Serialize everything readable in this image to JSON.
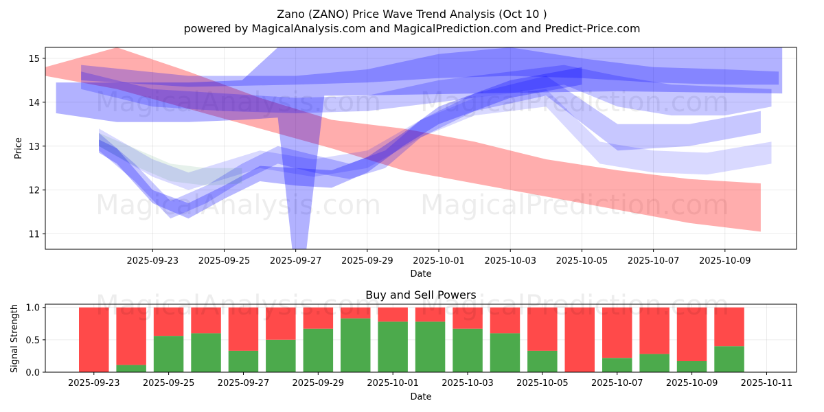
{
  "chart_data": [
    {
      "type": "area",
      "title": "Zano (ZANO) Price Wave Trend Analysis (Oct 10 )",
      "subtitle": "powered by MagicalAnalysis.com and MagicalPrediction.com and Predict-Price.com",
      "xlabel": "Date",
      "ylabel": "Price",
      "xlim": [
        "2025-09-20",
        "2025-10-11"
      ],
      "ylim": [
        10.65,
        15.25
      ],
      "x_ticks": [
        "2025-09-23",
        "2025-09-25",
        "2025-09-27",
        "2025-09-29",
        "2025-10-01",
        "2025-10-03",
        "2025-10-05",
        "2025-10-07",
        "2025-10-09"
      ],
      "y_ticks": [
        11,
        12,
        13,
        14,
        15
      ],
      "grid": true,
      "watermarks": [
        "MagicalAnalysis.com",
        "MagicalPrediction.com",
        "MagicalAnalysis.com",
        "MagicalPrediction.com"
      ],
      "series": [
        {
          "name": "red-band",
          "color": "#ff0000",
          "opacity": 0.32,
          "x": [
            "2025-09-20",
            "2025-09-22",
            "2025-09-24",
            "2025-09-26",
            "2025-09-28",
            "2025-09-30",
            "2025-10-02",
            "2025-10-04",
            "2025-10-06",
            "2025-10-08",
            "2025-10-10"
          ],
          "upper": [
            14.8,
            15.25,
            14.7,
            14.1,
            13.6,
            13.4,
            13.1,
            12.7,
            12.45,
            12.25,
            12.15
          ],
          "lower": [
            14.6,
            14.3,
            13.85,
            13.4,
            12.95,
            12.45,
            12.15,
            11.85,
            11.55,
            11.25,
            11.05
          ]
        },
        {
          "name": "blue-band-1",
          "color": "#0000ff",
          "opacity": 0.3,
          "x": [
            "2025-09-20.3",
            "2025-09-22",
            "2025-09-24",
            "2025-09-25.5",
            "2025-09-26.5",
            "2025-09-26.9",
            "2025-09-27.3",
            "2025-09-27.8",
            "2025-09-28.5",
            "2025-10-02",
            "2025-10-06",
            "2025-10-10.6"
          ],
          "upper": [
            14.45,
            14.45,
            14.45,
            14.5,
            15.25,
            15.25,
            15.25,
            15.25,
            15.25,
            15.25,
            15.25,
            15.25
          ],
          "lower": [
            13.75,
            13.55,
            13.55,
            13.6,
            13.65,
            10.65,
            10.65,
            14.15,
            14.15,
            14.2,
            14.25,
            14.2
          ]
        },
        {
          "name": "blue-band-2",
          "color": "#0000ff",
          "opacity": 0.25,
          "x": [
            "2025-09-21",
            "2025-09-24",
            "2025-09-27",
            "2025-09-29",
            "2025-10-01",
            "2025-10-03",
            "2025-10-05",
            "2025-10-07",
            "2025-10-09",
            "2025-10-10.5"
          ],
          "upper": [
            14.85,
            14.6,
            14.6,
            14.75,
            15.1,
            15.25,
            15.0,
            14.8,
            14.75,
            14.7
          ],
          "lower": [
            14.5,
            14.35,
            14.4,
            14.45,
            14.55,
            14.6,
            14.55,
            14.45,
            14.4,
            14.4
          ]
        },
        {
          "name": "blue-band-3",
          "color": "#0000ff",
          "opacity": 0.22,
          "x": [
            "2025-09-21",
            "2025-09-23",
            "2025-09-25",
            "2025-09-27",
            "2025-09-29",
            "2025-10-01",
            "2025-10-03",
            "2025-10-04.5",
            "2025-10-06",
            "2025-10-07.5",
            "2025-10-09",
            "2025-10-10.3"
          ],
          "upper": [
            14.7,
            14.3,
            14.2,
            14.1,
            14.15,
            14.5,
            14.7,
            14.85,
            14.6,
            14.4,
            14.35,
            14.3
          ],
          "lower": [
            14.3,
            13.9,
            13.8,
            13.75,
            13.8,
            14.0,
            14.2,
            14.4,
            13.9,
            13.7,
            13.7,
            13.9
          ]
        },
        {
          "name": "blue-wave-1",
          "color": "#0000ff",
          "opacity": 0.28,
          "x": [
            "2025-09-21.5",
            "2025-09-22",
            "2025-09-23",
            "2025-09-24",
            "2025-09-25",
            "2025-09-26",
            "2025-09-27",
            "2025-09-28",
            "2025-09-29",
            "2025-09-30",
            "2025-10-01",
            "2025-10-03",
            "2025-10-05"
          ],
          "upper": [
            13.15,
            12.95,
            12.0,
            11.7,
            12.1,
            12.55,
            12.5,
            12.45,
            12.75,
            13.3,
            13.9,
            14.5,
            14.8
          ],
          "lower": [
            12.85,
            12.6,
            11.7,
            11.35,
            11.8,
            12.2,
            12.1,
            12.05,
            12.4,
            13.0,
            13.5,
            14.1,
            14.4
          ]
        },
        {
          "name": "blue-wave-2",
          "color": "#0000ff",
          "opacity": 0.22,
          "x": [
            "2025-09-21.5",
            "2025-09-22.5",
            "2025-09-23.5",
            "2025-09-24.5",
            "2025-09-25.5",
            "2025-09-26.5",
            "2025-09-27.5",
            "2025-09-28.5",
            "2025-09-29.5",
            "2025-10-00.5",
            "2025-10-02",
            "2025-10-04",
            "2025-10-06",
            "2025-10-08",
            "2025-10-10"
          ],
          "upper": [
            13.3,
            12.6,
            11.75,
            12.1,
            12.6,
            13.0,
            12.8,
            12.6,
            12.9,
            13.6,
            14.2,
            14.6,
            13.5,
            13.5,
            13.8
          ],
          "lower": [
            12.9,
            12.2,
            11.35,
            11.7,
            12.2,
            12.6,
            12.4,
            12.25,
            12.5,
            13.2,
            13.8,
            14.15,
            12.9,
            13.0,
            13.3
          ]
        },
        {
          "name": "blue-wave-3",
          "color": "#0000ff",
          "opacity": 0.15,
          "x": [
            "2025-09-21.5",
            "2025-09-23",
            "2025-09-24",
            "2025-09-26",
            "2025-09-27.5",
            "2025-09-29",
            "2025-10-00.5",
            "2025-10-02",
            "2025-10-04",
            "2025-10-05.5",
            "2025-10-07",
            "2025-10-08.5",
            "2025-10-10.3"
          ],
          "upper": [
            13.4,
            12.7,
            12.4,
            12.9,
            12.7,
            12.9,
            13.6,
            14.1,
            14.3,
            13.1,
            12.9,
            12.85,
            13.1
          ],
          "lower": [
            13.0,
            12.3,
            12.0,
            12.5,
            12.3,
            12.5,
            13.2,
            13.7,
            13.9,
            12.6,
            12.4,
            12.35,
            12.6
          ]
        },
        {
          "name": "green-wave",
          "color": "#2e8b57",
          "opacity": 0.12,
          "x": [
            "2025-09-21.5",
            "2025-09-22.5",
            "2025-09-23.5",
            "2025-09-24.5",
            "2025-09-25.5"
          ],
          "upper": [
            13.3,
            12.95,
            12.6,
            12.5,
            12.5
          ],
          "lower": [
            13.0,
            12.55,
            12.2,
            12.1,
            12.15
          ]
        }
      ]
    },
    {
      "type": "bar",
      "title": "Buy and Sell Powers",
      "xlabel": "Date",
      "ylabel": "Signal Strength",
      "xlim": [
        "2025-09-21.7",
        "2025-10-11.8"
      ],
      "ylim": [
        0.0,
        1.05
      ],
      "x_ticks": [
        "2025-09-23",
        "2025-09-25",
        "2025-09-27",
        "2025-09-29",
        "2025-10-01",
        "2025-10-03",
        "2025-10-05",
        "2025-10-07",
        "2025-10-09",
        "2025-10-11"
      ],
      "y_ticks": [
        "0.0",
        "0.5",
        "1.0"
      ],
      "grid": true,
      "categories": [
        "2025-09-23",
        "2025-09-24",
        "2025-09-25",
        "2025-09-26",
        "2025-09-27",
        "2025-09-28",
        "2025-09-29",
        "2025-09-30",
        "2025-10-01",
        "2025-10-02",
        "2025-10-03",
        "2025-10-04",
        "2025-10-05",
        "2025-10-06",
        "2025-10-07",
        "2025-10-08",
        "2025-10-09",
        "2025-10-10"
      ],
      "series": [
        {
          "name": "Buy",
          "color": "#4caa4c",
          "values": [
            0.0,
            0.11,
            0.56,
            0.6,
            0.33,
            0.5,
            0.67,
            0.83,
            0.78,
            0.78,
            0.67,
            0.6,
            0.33,
            0.0,
            0.22,
            0.28,
            0.17,
            0.4
          ]
        },
        {
          "name": "Sell",
          "color": "#ff4a4a",
          "values": [
            1.0,
            0.89,
            0.44,
            0.4,
            0.67,
            0.5,
            0.33,
            0.17,
            0.22,
            0.22,
            0.33,
            0.4,
            0.67,
            1.0,
            0.78,
            0.72,
            0.83,
            0.6
          ]
        }
      ]
    }
  ]
}
